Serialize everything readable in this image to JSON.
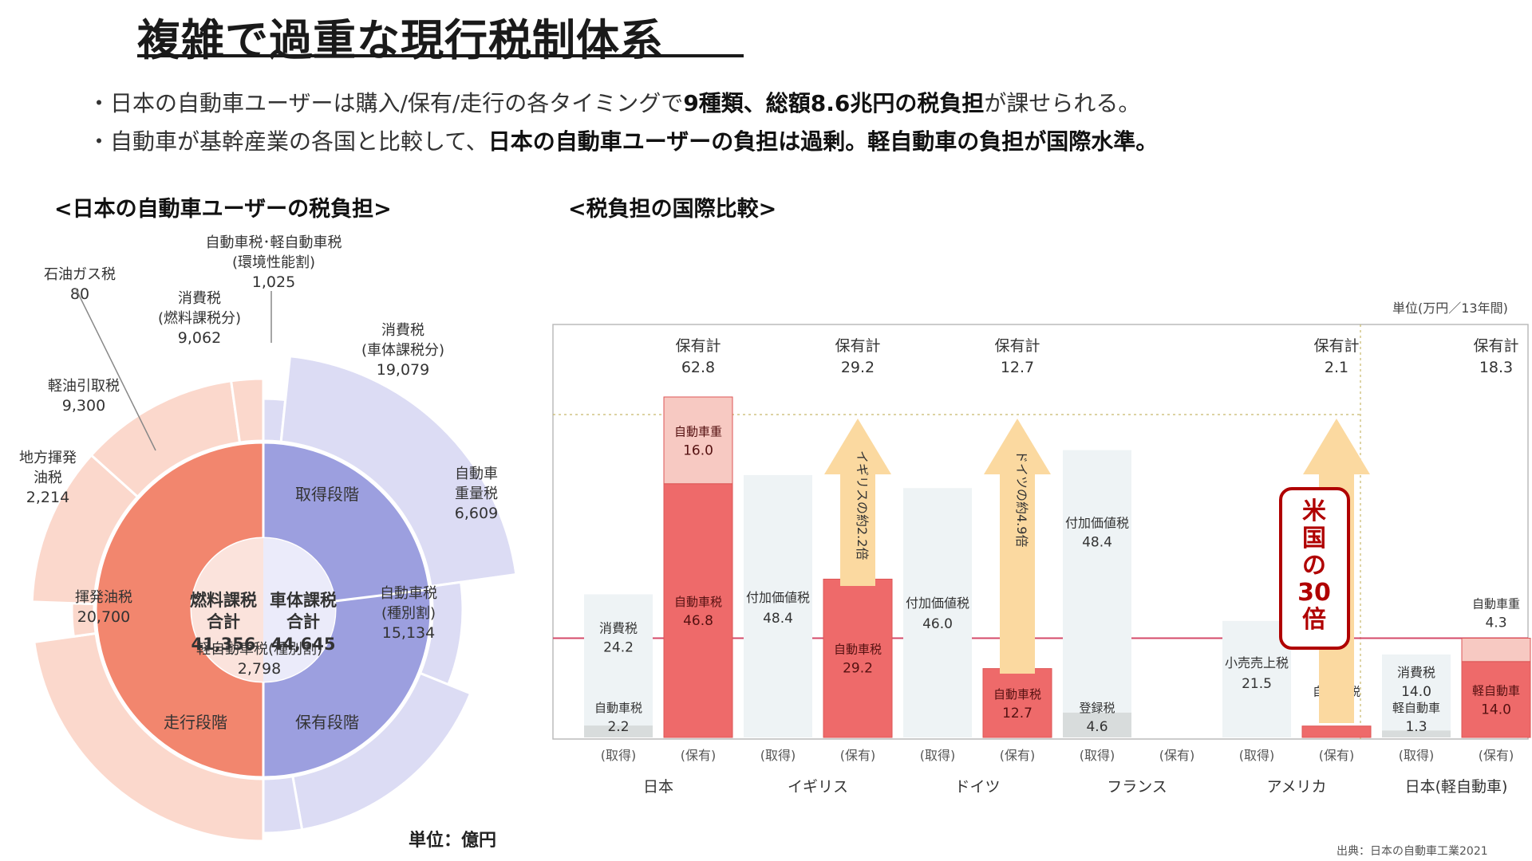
{
  "title": "複雑で過重な現行税制体系",
  "bullets": [
    {
      "pre": "・日本の自動車ユーザーは購入/保有/走行の各タイミングで",
      "bold": "9種類、総額8.6兆円の税負担",
      "post": "が課せられる。"
    },
    {
      "pre": "・自動車が基幹産業の各国と比較して、",
      "bold": "日本の自動車ユーザーの負担は過剰。軽自動車の負担が国際水準。",
      "post": ""
    }
  ],
  "left_section": {
    "heading": "<日本の自動車ユーザーの税負担>",
    "unit": "単位：億円",
    "center_left": {
      "line1": "燃料課税",
      "line2": "合計",
      "value": "41,356"
    },
    "center_right": {
      "line1": "車体課税",
      "line2": "合計",
      "value": "44,645"
    },
    "stages": {
      "acquire": "取得段階",
      "hold": "保有段階",
      "run": "走行段階"
    },
    "outer_labels": [
      {
        "name": "自動車税･軽自動車税",
        "sub": "(環境性能割)",
        "value": "1,025"
      },
      {
        "name": "消費税",
        "sub": "(車体課税分)",
        "value": "19,079"
      },
      {
        "name": "自動車",
        "sub": "重量税",
        "value": "6,609"
      },
      {
        "name": "自動車税",
        "sub": "(種別割)",
        "value": "15,134"
      },
      {
        "name": "軽自動車税(種別割)",
        "sub": "",
        "value": "2,798"
      },
      {
        "name": "揮発油税",
        "sub": "",
        "value": "20,700"
      },
      {
        "name": "地方揮発",
        "sub": "油税",
        "value": "2,214"
      },
      {
        "name": "軽油引取税",
        "sub": "",
        "value": "9,300"
      },
      {
        "name": "消費税",
        "sub": "(燃料課税分)",
        "value": "9,062"
      },
      {
        "name": "石油ガス税",
        "sub": "",
        "value": "80"
      }
    ]
  },
  "right_section": {
    "heading": "<税負担の国際比較>",
    "unit": "単位(万円／13年間)",
    "source": "出典：日本の自動車工業2021",
    "highlight": [
      "米",
      "国",
      "の",
      "30",
      "倍"
    ],
    "arrows": [
      {
        "text": "イギリスの約2.2倍"
      },
      {
        "text": "ドイツの約4.9倍"
      }
    ],
    "chart_data": {
      "type": "bar",
      "unit": "万円／13年間",
      "countries": [
        "日本",
        "イギリス",
        "ドイツ",
        "フランス",
        "アメリカ",
        "日本(軽自動車)"
      ],
      "hold_totals": [
        {
          "label": "保有計",
          "value": "62.8"
        },
        {
          "label": "保有計",
          "value": "29.2"
        },
        {
          "label": "保有計",
          "value": "12.7"
        },
        {
          "label": "",
          "value": ""
        },
        {
          "label": "保有計",
          "value": "2.1"
        },
        {
          "label": "保有計",
          "value": "18.3"
        }
      ],
      "column_labels": {
        "acquire": "(取得)",
        "hold": "(保有)"
      },
      "acquire_segments": [
        [
          {
            "name": "消費税",
            "value": 24.2,
            "label": "24.2"
          },
          {
            "name": "自動車税環境性能割",
            "value": 2.2,
            "label": "2.2"
          }
        ],
        [
          {
            "name": "付加価値税",
            "value": 48.4,
            "label": "48.4"
          }
        ],
        [
          {
            "name": "付加価値税",
            "value": 46.0,
            "label": "46.0"
          }
        ],
        [
          {
            "name": "付加価値税",
            "value": 48.4,
            "label": "48.4"
          },
          {
            "name": "登録税",
            "value": 4.6,
            "label": "4.6"
          }
        ],
        [
          {
            "name": "小売売上税",
            "value": 21.5,
            "label": "21.5"
          }
        ],
        [
          {
            "name": "消費税",
            "value": 14.0,
            "label": "14.0"
          },
          {
            "name": "軽自動車税環境性能割",
            "value": 1.3,
            "label": "1.3"
          }
        ]
      ],
      "hold_segments": [
        [
          {
            "name": "自動車税種別割",
            "value": 46.8,
            "label": "46.8"
          },
          {
            "name": "自動車重量税",
            "value": 16.0,
            "label": "16.0"
          }
        ],
        [
          {
            "name": "自動車税",
            "value": 29.2,
            "label": "29.2"
          }
        ],
        [
          {
            "name": "自動車税",
            "value": 12.7,
            "label": "12.7"
          }
        ],
        [],
        [
          {
            "name": "自動車税",
            "value": 2.1,
            "label": "2.1"
          }
        ],
        [
          {
            "name": "軽自動車税種別割",
            "value": 14.0,
            "label": "14.0"
          },
          {
            "name": "自動車重量税",
            "value": 4.3,
            "label": "4.3"
          }
        ]
      ]
    }
  },
  "colors": {
    "fuel_inner": "#f2866e",
    "fuel_outer": "#fbd8cc",
    "body_inner": "#9c9fdf",
    "body_outer": "#dcdcf4",
    "hold_bar": "#ee6a6a",
    "hold_bar_light": "#f7c9c2",
    "acquire_bar": "#eef3f5",
    "acquire_small": "#d8dcdc",
    "arrow": "#fbd9a0",
    "highlight": "#b00000"
  }
}
